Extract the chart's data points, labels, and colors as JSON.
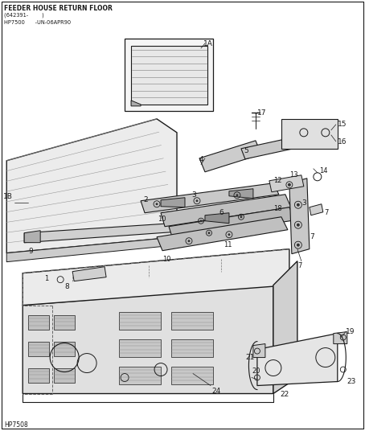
{
  "title_line1": "FEEDER HOUSE RETURN FLOOR",
  "title_line2": "(642391-        )",
  "title_line3": "HP7500      -UN-06APR90",
  "footer": "HP7508",
  "bg": "#ffffff",
  "lc": "#1a1a1a",
  "figsize": [
    4.54,
    5.36
  ],
  "dpi": 100
}
